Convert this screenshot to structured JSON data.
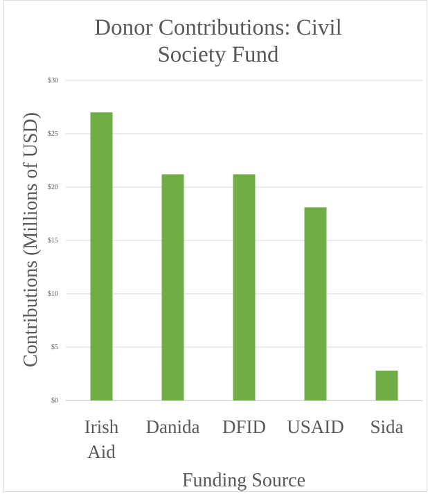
{
  "chart_data": {
    "type": "bar",
    "title": "Donor Contributions: Civil Society Fund",
    "title_lines": [
      "Donor Contributions: Civil",
      "Society Fund"
    ],
    "xlabel": "Funding Source",
    "ylabel": "Contributions (Millions of USD)",
    "categories": [
      "Irish Aid",
      "Danida",
      "DFID",
      "USAID",
      "Sida"
    ],
    "category_lines": [
      [
        "Irish",
        "Aid"
      ],
      [
        "Danida"
      ],
      [
        "DFID"
      ],
      [
        "USAID"
      ],
      [
        "Sida"
      ]
    ],
    "values": [
      27,
      21.2,
      21.2,
      18.1,
      2.8
    ],
    "ylim": [
      0,
      30
    ],
    "yticks": [
      0,
      5,
      10,
      15,
      20,
      25,
      30
    ],
    "ytick_labels": [
      "$0",
      "$5",
      "$10",
      "$15",
      "$20",
      "$25",
      "$30"
    ],
    "grid": true,
    "legend": "none",
    "bar_color": "#70ad47"
  }
}
